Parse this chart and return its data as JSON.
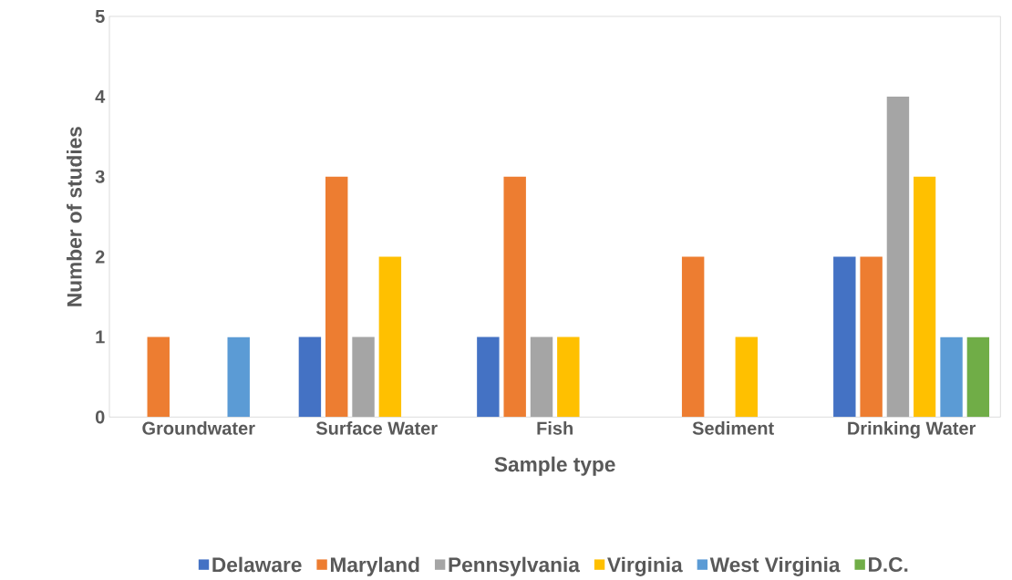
{
  "chart_data": {
    "type": "bar",
    "xlabel": "Sample type",
    "ylabel": "Number of studies",
    "categories": [
      "Groundwater",
      "Surface Water",
      "Fish",
      "Sediment",
      "Drinking Water"
    ],
    "series": [
      {
        "name": "Delaware",
        "color": "#4472c4",
        "values": [
          0,
          1,
          1,
          0,
          2
        ]
      },
      {
        "name": "Maryland",
        "color": "#ed7d31",
        "values": [
          1,
          3,
          3,
          2,
          2
        ]
      },
      {
        "name": "Pennsylvania",
        "color": "#a5a5a5",
        "values": [
          0,
          1,
          1,
          0,
          4
        ]
      },
      {
        "name": "Virginia",
        "color": "#ffc000",
        "values": [
          0,
          2,
          1,
          1,
          3
        ]
      },
      {
        "name": "West Virginia",
        "color": "#5b9bd5",
        "values": [
          1,
          0,
          0,
          0,
          1
        ]
      },
      {
        "name": "D.C.",
        "color": "#70ad47",
        "values": [
          0,
          0,
          0,
          0,
          1
        ]
      }
    ],
    "ylim": [
      0,
      5
    ],
    "yticks": [
      0,
      1,
      2,
      3,
      4,
      5
    ],
    "legend": "bottom"
  }
}
